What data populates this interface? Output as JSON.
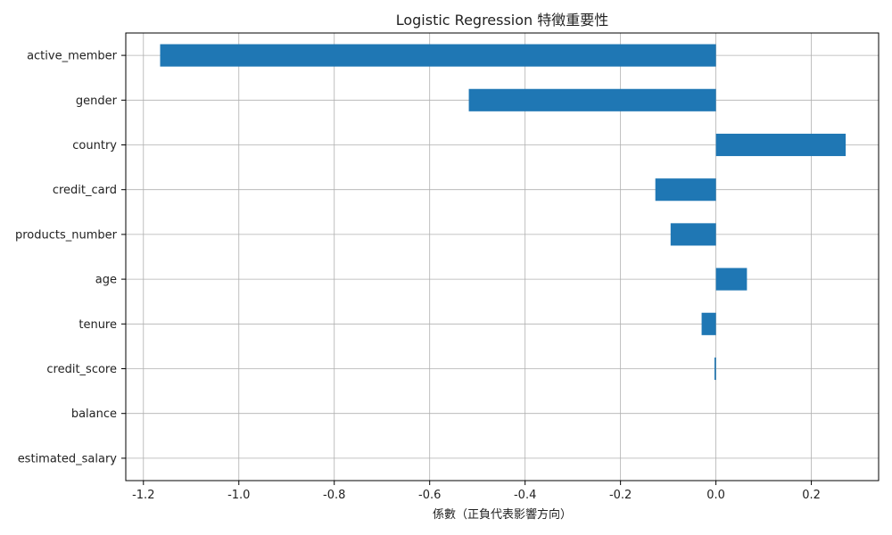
{
  "chart_data": {
    "type": "bar",
    "orientation": "horizontal",
    "title": "Logistic Regression 特徵重要性",
    "xlabel": "係數（正負代表影響方向）",
    "ylabel": "",
    "categories": [
      "active_member",
      "gender",
      "country",
      "credit_card",
      "products_number",
      "age",
      "tenure",
      "credit_score",
      "balance",
      "estimated_salary"
    ],
    "values": [
      -1.165,
      -0.518,
      0.272,
      -0.127,
      -0.095,
      0.065,
      -0.03,
      -0.003,
      0.0,
      0.0
    ],
    "xlim": [
      -1.237,
      0.341
    ],
    "xticks": [
      -1.2,
      -1.0,
      -0.8,
      -0.6,
      -0.4,
      -0.2,
      0.0,
      0.2
    ],
    "xtick_labels": [
      "-1.2",
      "-1.0",
      "-0.8",
      "-0.6",
      "-0.4",
      "-0.2",
      "0.0",
      "0.2"
    ],
    "grid": true,
    "bar_color": "#1f77b4",
    "grid_color": "#b0b0b0"
  }
}
